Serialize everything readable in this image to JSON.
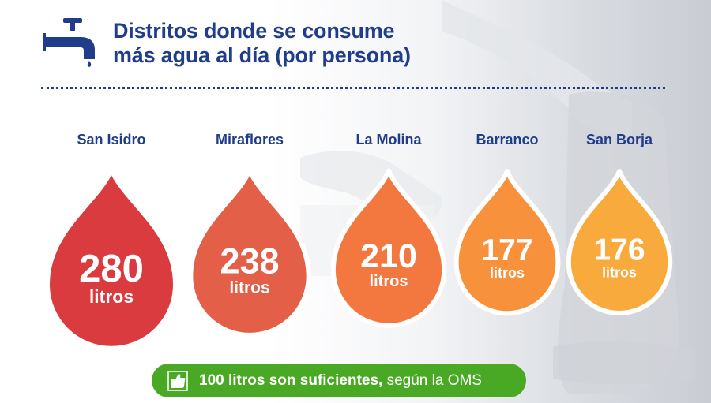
{
  "title": {
    "line1": "Distritos donde se consume",
    "line2": "más agua al día (por persona)"
  },
  "colors": {
    "title": "#1f3d8a",
    "note_bg": "#4aa924",
    "drops": [
      "#d93b3e",
      "#e35f47",
      "#f2783f",
      "#f7913b",
      "#f8aa3c"
    ]
  },
  "icons": {
    "header": "water-faucet-icon",
    "note": "thumbs-up-icon"
  },
  "chart_data": {
    "type": "bar",
    "categories": [
      "San Isidro",
      "Miraflores",
      "La Molina",
      "Barranco",
      "San Borja"
    ],
    "values": [
      280,
      238,
      210,
      177,
      176
    ],
    "unit": "litros",
    "title": "Distritos donde se consume más agua al día (por persona)"
  },
  "note": {
    "bold": "100 litros son suficientes,",
    "rest": " según la OMS"
  }
}
